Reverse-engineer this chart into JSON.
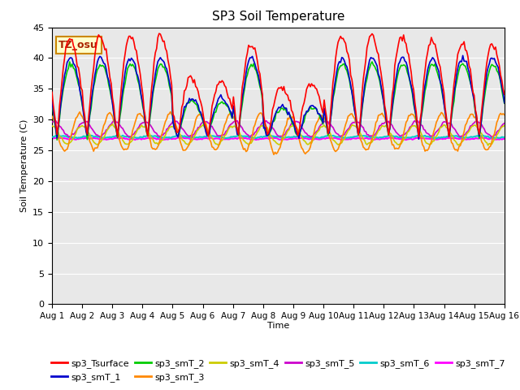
{
  "title": "SP3 Soil Temperature",
  "xlabel": "Time",
  "ylabel": "Soil Temperature (C)",
  "ylim": [
    0,
    45
  ],
  "bg_color": "#e8e8e8",
  "annotation_text": "TZ_osu",
  "annotation_bg": "#ffffcc",
  "annotation_border": "#cc8800",
  "series_colors": {
    "sp3_Tsurface": "#ff0000",
    "sp3_smT_1": "#0000cc",
    "sp3_smT_2": "#00cc00",
    "sp3_smT_3": "#ff8800",
    "sp3_smT_4": "#cccc00",
    "sp3_smT_5": "#cc00cc",
    "sp3_smT_6": "#00cccc",
    "sp3_smT_7": "#ff00ff"
  },
  "legend_order": [
    "sp3_Tsurface",
    "sp3_smT_1",
    "sp3_smT_2",
    "sp3_smT_3",
    "sp3_smT_4",
    "sp3_smT_5",
    "sp3_smT_6",
    "sp3_smT_7"
  ]
}
